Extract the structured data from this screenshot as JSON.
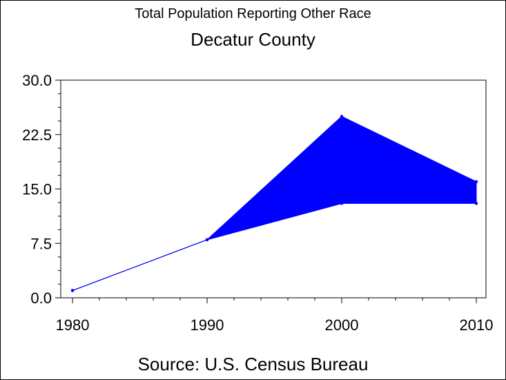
{
  "title": "Total Population Reporting Other Race",
  "subtitle": "Decatur County",
  "footnote": "Source: U.S. Census Bureau",
  "colors": {
    "series": "#0000ff",
    "axis": "#000000",
    "background": "#ffffff"
  },
  "chart_data": {
    "type": "area",
    "title": "Total Population Reporting Other Race",
    "subtitle": "Decatur County",
    "x": [
      1980,
      1990,
      2000,
      2010
    ],
    "series": [
      {
        "values": [
          1,
          8,
          25,
          16
        ]
      },
      {
        "values": [
          1,
          8,
          13,
          13
        ]
      }
    ],
    "xlim": [
      1980,
      2010
    ],
    "ylim": [
      0,
      30
    ],
    "xticks": [
      1980,
      1990,
      2000,
      2010
    ],
    "xtick_labels": [
      "1980",
      "1990",
      "2000",
      "2010"
    ],
    "yticks": [
      0,
      7.5,
      15,
      22.5,
      30
    ],
    "ytick_labels": [
      "0.0",
      "7.5",
      "15.0",
      "22.5",
      "30.0"
    ],
    "grid": false,
    "legend": "none"
  }
}
